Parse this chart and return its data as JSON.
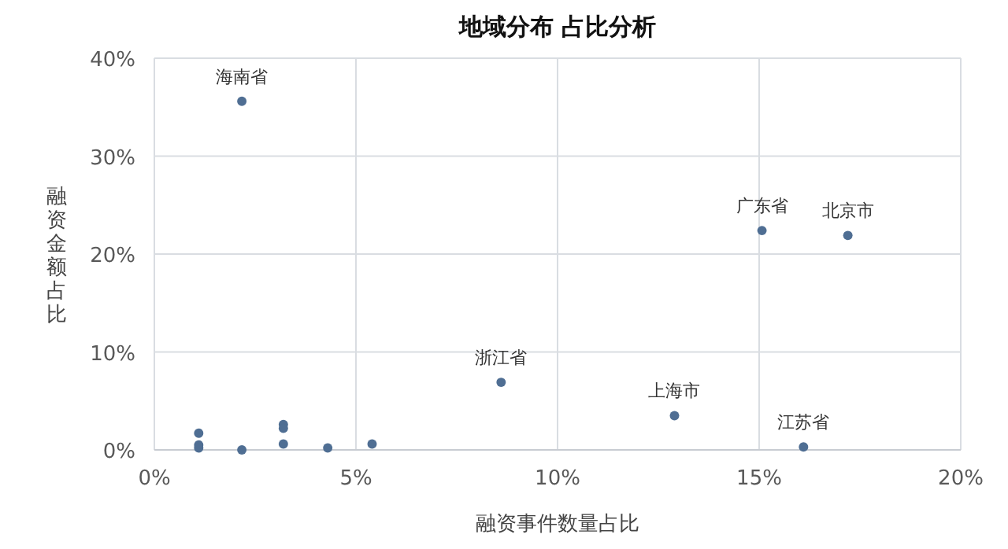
{
  "chart_data": {
    "type": "scatter",
    "title": "地域分布 占比分析",
    "xlabel": "融资事件数量占比",
    "ylabel": "融资金额占比",
    "x": [
      2.17,
      15.07,
      17.2,
      8.6,
      12.9,
      16.1,
      1.1,
      1.1,
      1.1,
      2.17,
      3.2,
      3.2,
      3.2,
      4.3,
      5.4
    ],
    "values": [
      35.6,
      22.4,
      21.9,
      6.9,
      3.5,
      0.3,
      1.7,
      0.5,
      0.2,
      0.0,
      2.6,
      2.2,
      0.6,
      0.2,
      0.6
    ],
    "color": "#4f6e93",
    "marker": "circle",
    "grid": true,
    "xlim": [
      0,
      20
    ],
    "ylim": [
      0,
      40
    ],
    "xticks": [
      {
        "value": 0,
        "label": "0%"
      },
      {
        "value": 5,
        "label": "5%"
      },
      {
        "value": 10,
        "label": "10%"
      },
      {
        "value": 15,
        "label": "15%"
      },
      {
        "value": 20,
        "label": "20%"
      }
    ],
    "yticks": [
      {
        "value": 0,
        "label": "0%"
      },
      {
        "value": 10,
        "label": "10%"
      },
      {
        "value": 20,
        "label": "20%"
      },
      {
        "value": 30,
        "label": "30%"
      },
      {
        "value": 40,
        "label": "40%"
      }
    ],
    "annotations": [
      {
        "text": "海南省",
        "x": 2.17,
        "y": 35.6
      },
      {
        "text": "广东省",
        "x": 15.07,
        "y": 22.4
      },
      {
        "text": "北京市",
        "x": 17.2,
        "y": 21.9
      },
      {
        "text": "浙江省",
        "x": 8.6,
        "y": 6.9
      },
      {
        "text": "上海市",
        "x": 12.9,
        "y": 3.5
      },
      {
        "text": "江苏省",
        "x": 16.1,
        "y": 0.3
      }
    ]
  }
}
